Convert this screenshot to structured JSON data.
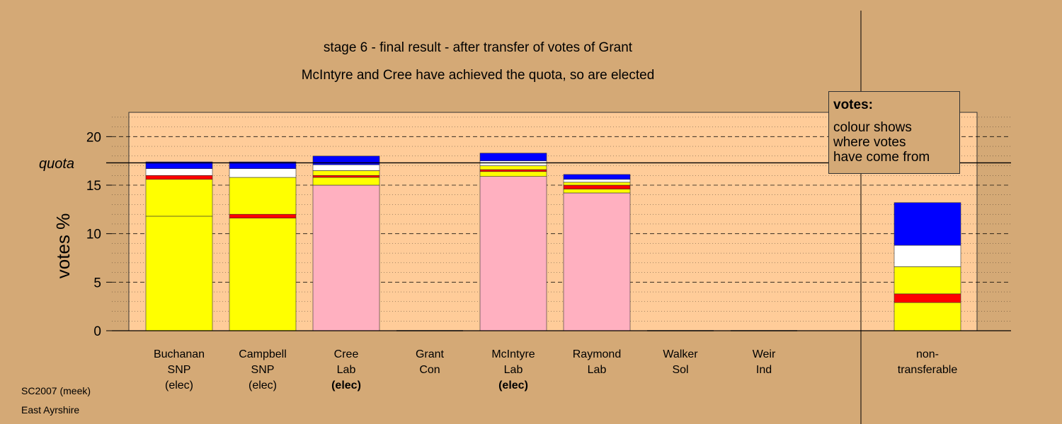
{
  "chart_data": {
    "type": "bar",
    "stacked": true,
    "title": "stage 6 - final result - after transfer of votes of Grant",
    "subtitle": "McIntyre and Cree have achieved the quota, so are elected",
    "ylabel": "votes %",
    "ylim": [
      0,
      22.5
    ],
    "yticks": [
      0,
      5,
      10,
      15,
      20
    ],
    "quota": 17.3,
    "quota_label": "quota",
    "grid": true,
    "colors": {
      "snp": "#ffff00",
      "lab": "#ffb0c0",
      "sol": "#ff0000",
      "con": "#0000ff",
      "ind": "#ffffff",
      "plot_bg": "#ffcc99",
      "page_bg": "#d4a976"
    },
    "categories": [
      {
        "name": "Buchanan",
        "party": "SNP",
        "status": "(elec)",
        "bold_status": false,
        "segments": [
          {
            "value": 11.8,
            "color": "#ffff00"
          },
          {
            "value": 3.8,
            "color": "#ffff00"
          },
          {
            "value": 0.4,
            "color": "#ff0000"
          },
          {
            "value": 0.7,
            "color": "#ffffff"
          },
          {
            "value": 0.7,
            "color": "#0000ff"
          }
        ]
      },
      {
        "name": "Campbell",
        "party": "SNP",
        "status": "(elec)",
        "bold_status": false,
        "segments": [
          {
            "value": 11.6,
            "color": "#ffff00"
          },
          {
            "value": 0.4,
            "color": "#ff0000"
          },
          {
            "value": 3.8,
            "color": "#ffff00"
          },
          {
            "value": 0.9,
            "color": "#ffffff"
          },
          {
            "value": 0.7,
            "color": "#0000ff"
          }
        ]
      },
      {
        "name": "Cree",
        "party": "Lab",
        "status": "(elec)",
        "bold_status": true,
        "segments": [
          {
            "value": 15.0,
            "color": "#ffb0c0"
          },
          {
            "value": 0.8,
            "color": "#ffff00"
          },
          {
            "value": 0.2,
            "color": "#ff0000"
          },
          {
            "value": 0.5,
            "color": "#ffff00"
          },
          {
            "value": 0.6,
            "color": "#ffffff"
          },
          {
            "value": 0.9,
            "color": "#0000ff"
          }
        ]
      },
      {
        "name": "Grant",
        "party": "Con",
        "status": "",
        "bold_status": false,
        "segments": []
      },
      {
        "name": "McIntyre",
        "party": "Lab",
        "status": "(elec)",
        "bold_status": true,
        "segments": [
          {
            "value": 15.9,
            "color": "#ffb0c0"
          },
          {
            "value": 0.5,
            "color": "#ffff00"
          },
          {
            "value": 0.2,
            "color": "#ff0000"
          },
          {
            "value": 0.4,
            "color": "#ffff00"
          },
          {
            "value": 0.5,
            "color": "#ffffff"
          },
          {
            "value": 0.8,
            "color": "#0000ff"
          }
        ]
      },
      {
        "name": "Raymond",
        "party": "Lab",
        "status": "",
        "bold_status": false,
        "segments": [
          {
            "value": 14.2,
            "color": "#ffb0c0"
          },
          {
            "value": 0.4,
            "color": "#ffff00"
          },
          {
            "value": 0.4,
            "color": "#ff0000"
          },
          {
            "value": 0.3,
            "color": "#ffff00"
          },
          {
            "value": 0.3,
            "color": "#ffffff"
          },
          {
            "value": 0.5,
            "color": "#0000ff"
          }
        ]
      },
      {
        "name": "Walker",
        "party": "Sol",
        "status": "",
        "bold_status": false,
        "segments": []
      },
      {
        "name": "Weir",
        "party": "Ind",
        "status": "",
        "bold_status": false,
        "segments": []
      }
    ],
    "non_transferable": {
      "label_line1": "non-",
      "label_line2": "transferable",
      "segments": [
        {
          "value": 2.9,
          "color": "#ffff00"
        },
        {
          "value": 0.9,
          "color": "#ff0000"
        },
        {
          "value": 2.8,
          "color": "#ffff00"
        },
        {
          "value": 2.2,
          "color": "#ffffff"
        },
        {
          "value": 4.4,
          "color": "#0000ff"
        }
      ]
    }
  },
  "legend": {
    "title": "votes:",
    "lines": [
      "colour shows",
      "where votes",
      "have come from"
    ]
  },
  "footer": {
    "line1": "SC2007 (meek)",
    "line2": "East Ayrshire"
  }
}
